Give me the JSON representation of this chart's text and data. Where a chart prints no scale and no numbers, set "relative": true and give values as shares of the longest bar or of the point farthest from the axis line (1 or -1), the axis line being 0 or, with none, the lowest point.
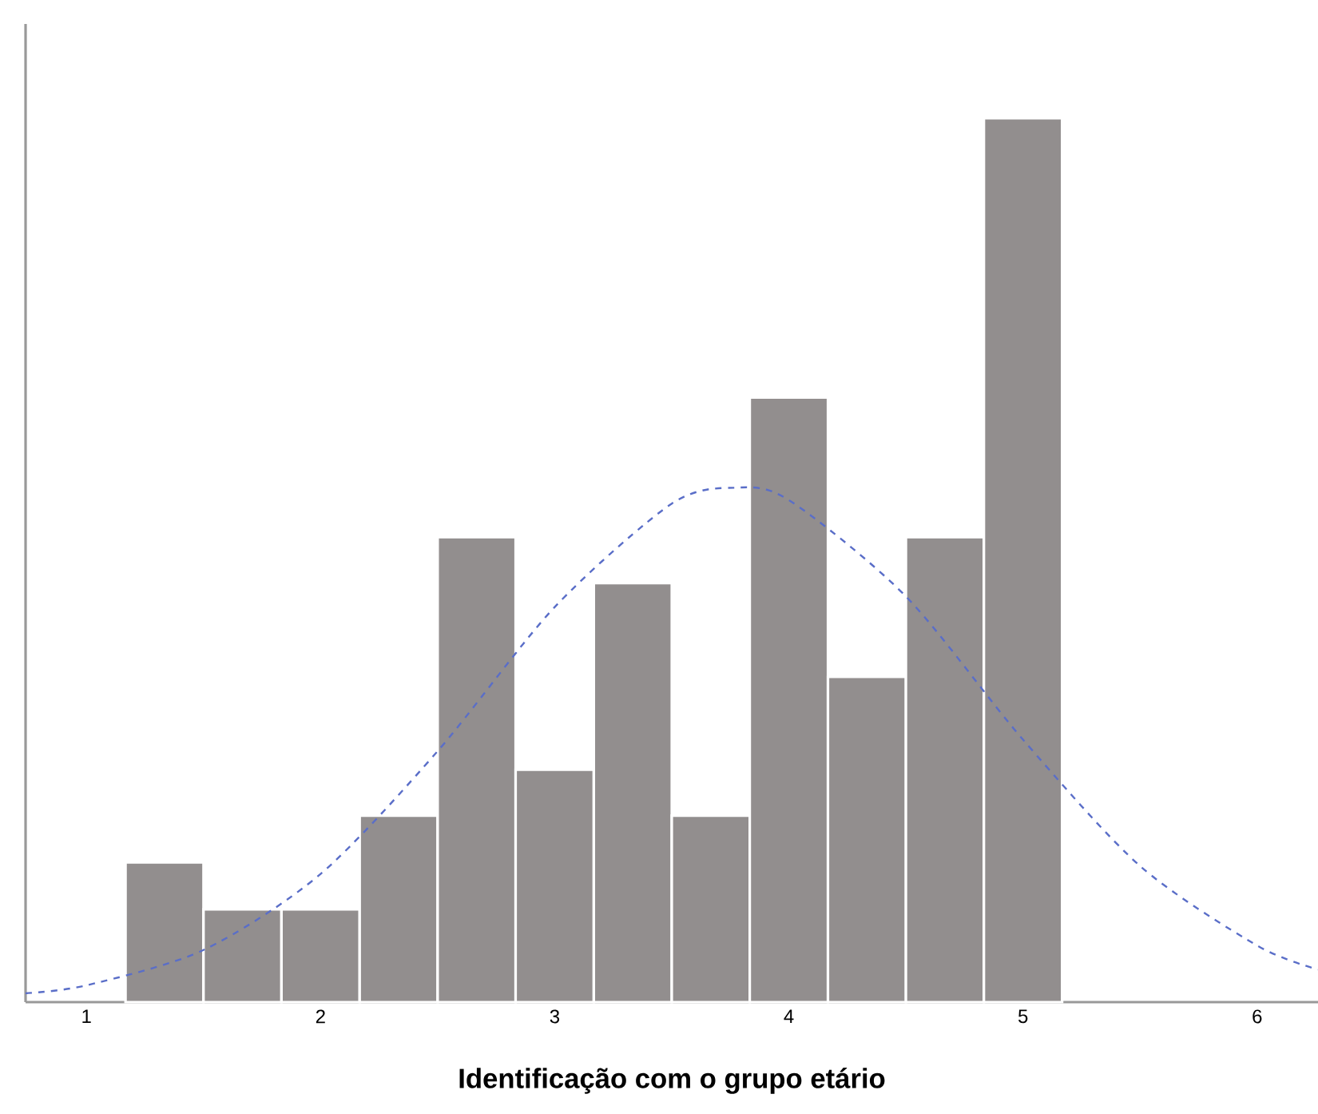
{
  "chart_data": {
    "type": "histogram",
    "relative": true,
    "xlabel": "Identificação com o grupo etário",
    "xlim": [
      0.74,
      6.26
    ],
    "xticks": [
      1,
      2,
      3,
      4,
      5,
      6
    ],
    "series": [
      {
        "type": "histogram",
        "color": "#928e8e",
        "bins": [
          1.167,
          1.5,
          1.833,
          2.167,
          2.5,
          2.833,
          3.167,
          3.5,
          3.833,
          4.167,
          4.5,
          4.833,
          5.167
        ],
        "values": [
          0.158,
          0.105,
          0.105,
          0.211,
          0.526,
          0.263,
          0.474,
          0.211,
          0.684,
          0.368,
          0.526,
          1.0
        ]
      },
      {
        "type": "line",
        "color": "#5a6ec8",
        "line_style": "dashed",
        "x": [
          0.74,
          1.0,
          1.5,
          2.0,
          2.5,
          3.0,
          3.5,
          3.77,
          4.0,
          4.5,
          5.0,
          5.5,
          6.0,
          6.26
        ],
        "values": [
          0.01,
          0.019,
          0.059,
          0.145,
          0.284,
          0.447,
          0.564,
          0.582,
          0.568,
          0.459,
          0.297,
          0.154,
          0.064,
          0.037
        ]
      }
    ]
  }
}
